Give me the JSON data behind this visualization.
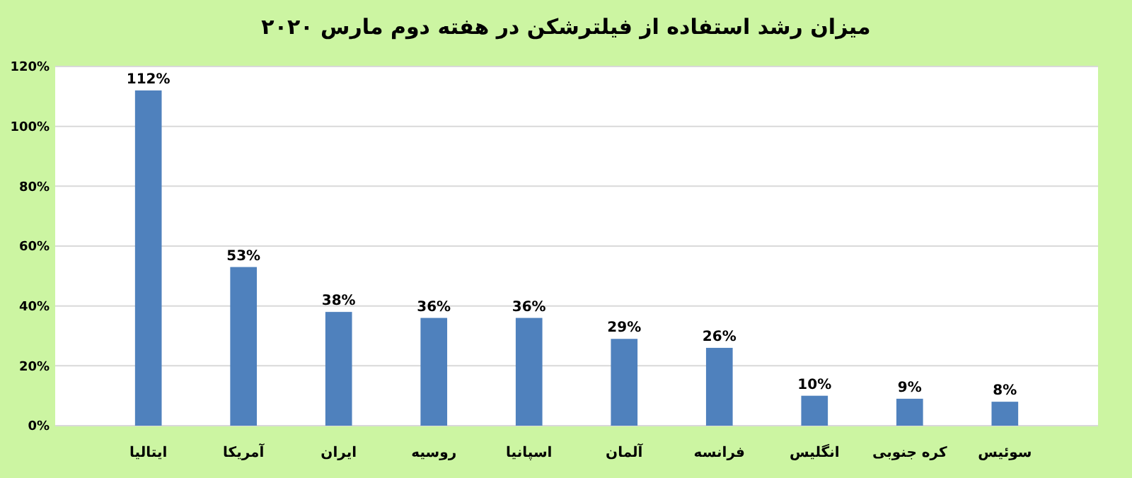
{
  "chart_data": {
    "type": "bar",
    "title": "میزان رشد استفاده از فیلترشکن در هفته دوم مارس ۲۰۲۰",
    "categories": [
      "ایتالیا",
      "آمریکا",
      "ایران",
      "روسیه",
      "اسپانیا",
      "آلمان",
      "فرانسه",
      "انگلیس",
      "کره جنوبی",
      "سوئیس"
    ],
    "values": [
      112,
      53,
      38,
      36,
      36,
      29,
      26,
      10,
      9,
      8
    ],
    "value_labels": [
      "112%",
      "53%",
      "38%",
      "36%",
      "36%",
      "29%",
      "26%",
      "10%",
      "9%",
      "8%"
    ],
    "color": "#4f81bd",
    "ylim": [
      0,
      120
    ],
    "yticks": [
      {
        "value": 0,
        "label": "0%"
      },
      {
        "value": 20,
        "label": "20%"
      },
      {
        "value": 40,
        "label": "40%"
      },
      {
        "value": 60,
        "label": "60%"
      },
      {
        "value": 80,
        "label": "80%"
      },
      {
        "value": 100,
        "label": "100%"
      },
      {
        "value": 120,
        "label": "120%"
      }
    ],
    "grid": "y"
  }
}
